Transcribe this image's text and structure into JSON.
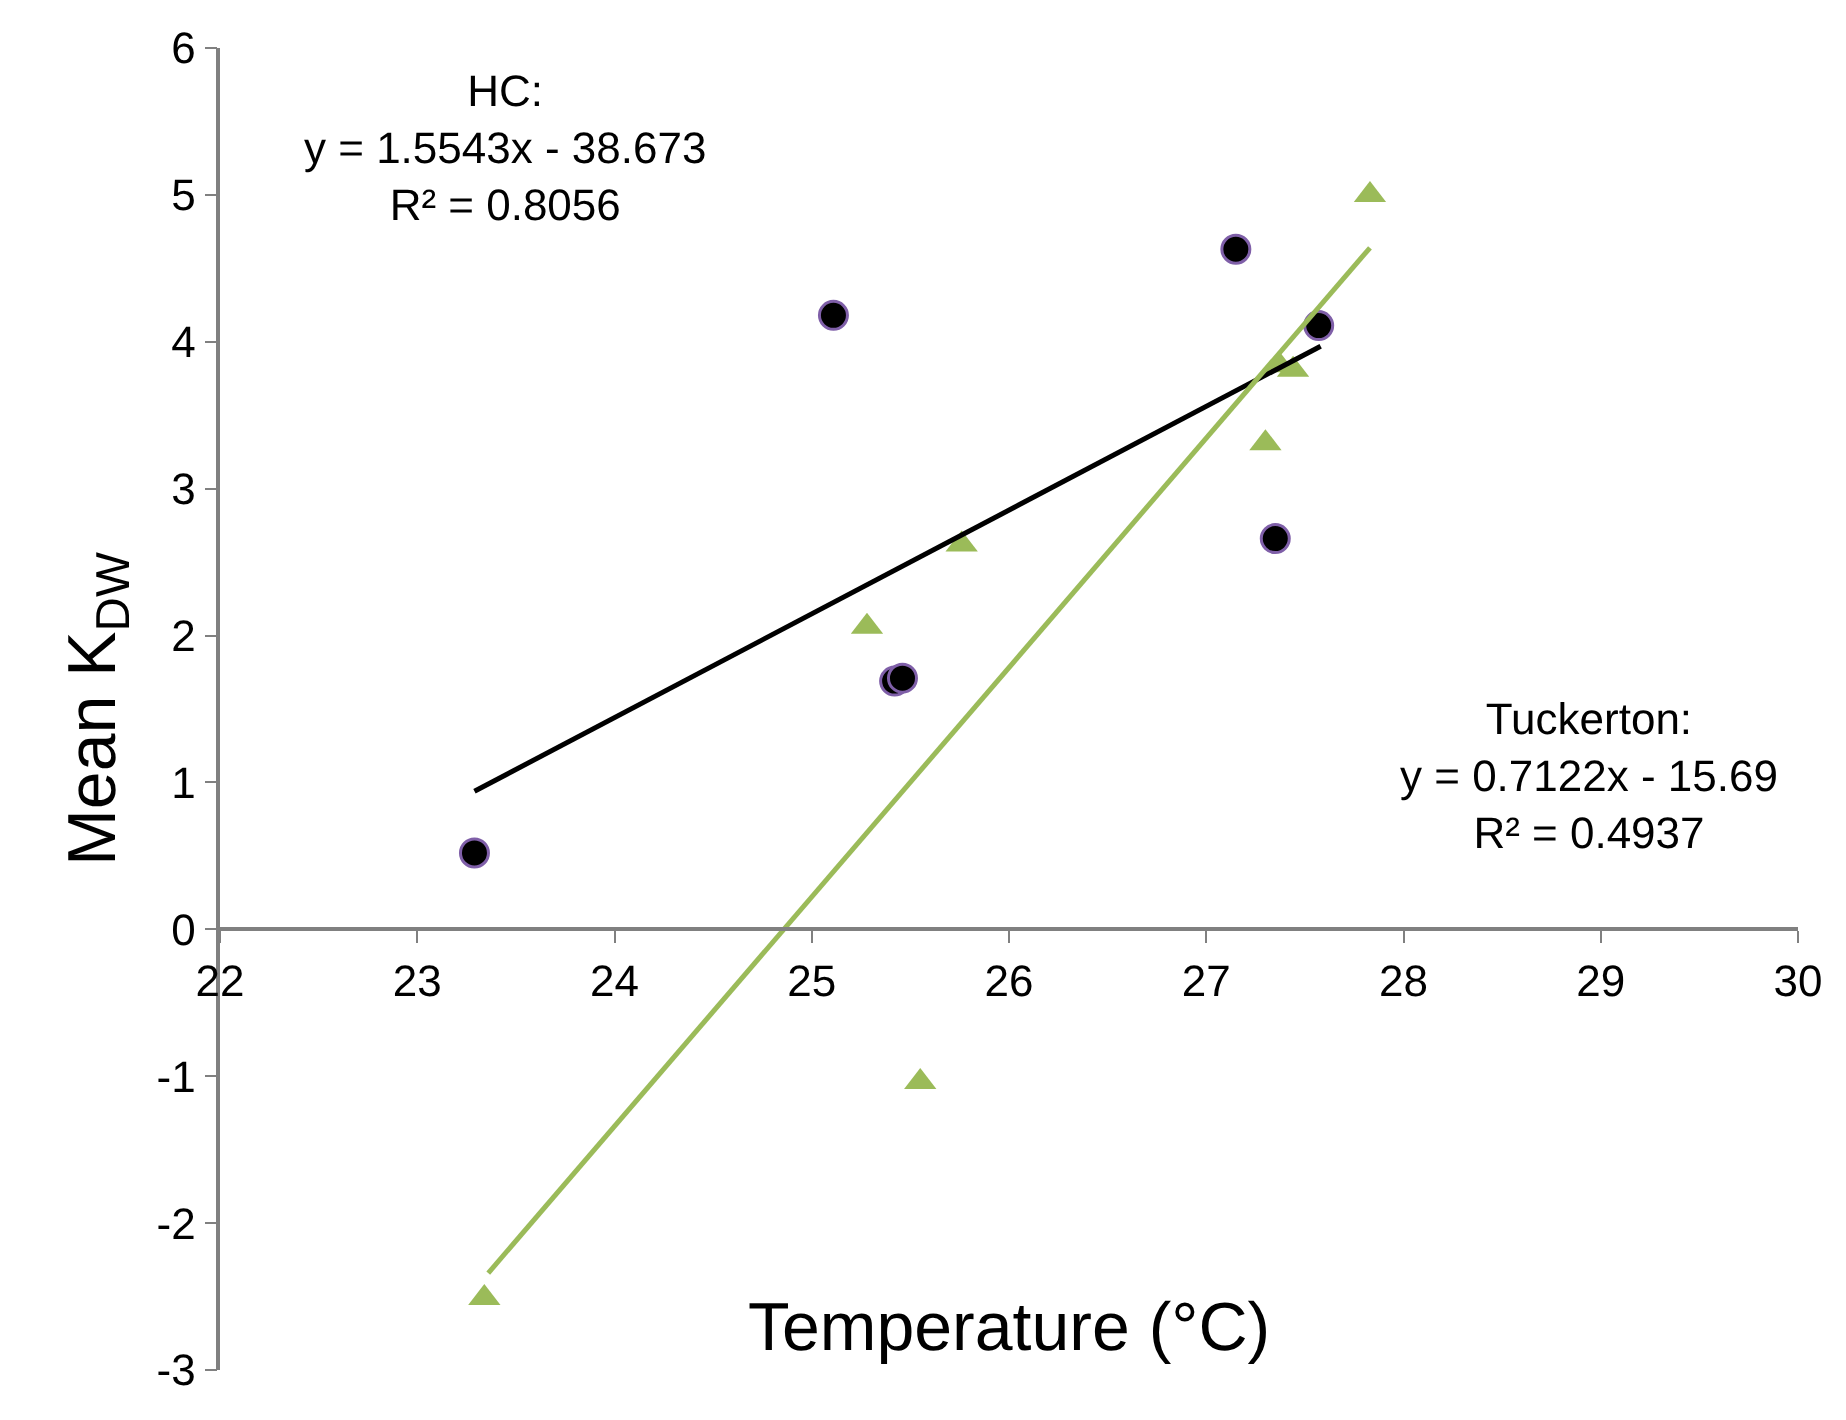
{
  "chart_data": {
    "type": "scatter",
    "xlabel": "Temperature (°C)",
    "ylabel": "Mean K$_{DW}$",
    "xlim": [
      22,
      30
    ],
    "xticks": [
      22,
      23,
      24,
      25,
      26,
      27,
      28,
      29,
      30
    ],
    "ylim": [
      -3,
      6
    ],
    "yticks": [
      -3,
      -2,
      -1,
      0,
      1,
      2,
      3,
      4,
      5,
      6
    ],
    "legend": false,
    "annotations": [
      "HC:\ny = 1.5543x - 38.673\nR² = 0.8056",
      "Tuckerton:\ny = 0.7122x - 15.69\nR² = 0.4937"
    ],
    "series": [
      {
        "marker": "circle",
        "color": "#000000",
        "x": [
          23.29,
          25.11,
          25.42,
          25.46,
          27.15,
          27.35,
          27.57
        ],
        "values": [
          0.52,
          4.18,
          1.69,
          1.71,
          4.63,
          2.66,
          4.11
        ]
      },
      {
        "marker": "triangle",
        "color": "#9bbb59",
        "x": [
          23.34,
          25.28,
          25.76,
          25.55,
          27.3,
          27.37,
          27.44,
          27.83
        ],
        "values": [
          -2.51,
          2.06,
          2.62,
          -1.04,
          3.31,
          3.84,
          3.81,
          5.0
        ]
      },
      {
        "type": "line",
        "color": "#000000",
        "x": [
          23.29,
          27.58
        ],
        "values": [
          0.94,
          3.97
        ]
      },
      {
        "type": "line",
        "color": "#9bbb59",
        "x": [
          23.36,
          27.83
        ],
        "values": [
          -2.34,
          4.64
        ]
      }
    ]
  }
}
